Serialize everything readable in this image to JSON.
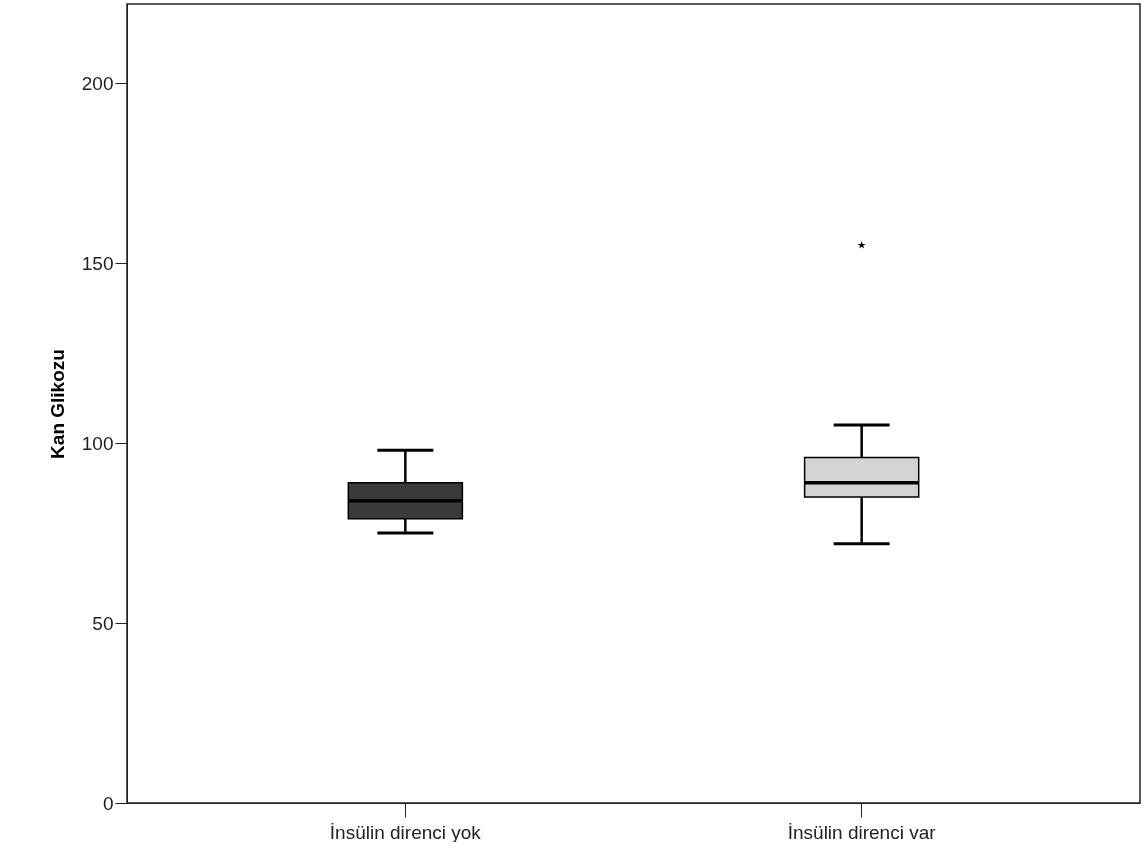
{
  "chart_data": {
    "type": "box",
    "ylabel": "Kan Glikozu",
    "categories": [
      "İnsülin direnci yok",
      "İnsülin direnci var"
    ],
    "boxes": [
      {
        "low": 75,
        "q1": 79,
        "median": 84,
        "q3": 89,
        "high": 98
      },
      {
        "low": 72,
        "q1": 85,
        "median": 89,
        "q3": 96,
        "high": 105,
        "outliers": [
          155
        ]
      }
    ],
    "colors": [
      "#3a3a3a",
      "#d4d4d4"
    ],
    "ylim": [
      0,
      222
    ],
    "yticks": [
      0,
      50,
      100,
      150,
      200
    ],
    "grid": false,
    "marker": "star"
  }
}
